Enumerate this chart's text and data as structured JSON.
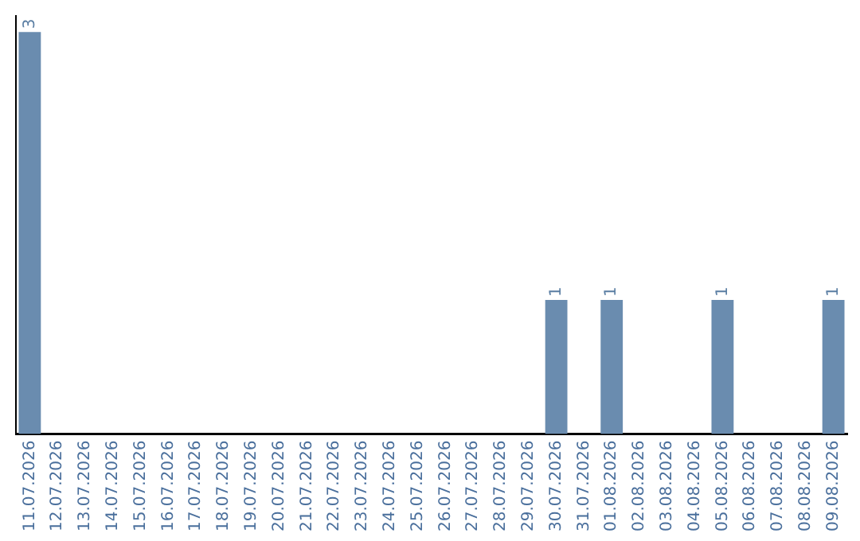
{
  "chart_data": {
    "type": "bar",
    "categories": [
      "11.07.2026",
      "12.07.2026",
      "13.07.2026",
      "14.07.2026",
      "15.07.2026",
      "16.07.2026",
      "17.07.2026",
      "18.07.2026",
      "19.07.2026",
      "20.07.2026",
      "21.07.2026",
      "22.07.2026",
      "23.07.2026",
      "24.07.2026",
      "25.07.2026",
      "26.07.2026",
      "27.07.2026",
      "28.07.2026",
      "29.07.2026",
      "30.07.2026",
      "31.07.2026",
      "01.08.2026",
      "02.08.2026",
      "03.08.2026",
      "04.08.2026",
      "05.08.2026",
      "06.08.2026",
      "07.08.2026",
      "08.08.2026",
      "09.08.2026"
    ],
    "values": [
      3,
      0,
      0,
      0,
      0,
      0,
      0,
      0,
      0,
      0,
      0,
      0,
      0,
      0,
      0,
      0,
      0,
      0,
      0,
      1,
      0,
      1,
      0,
      0,
      0,
      1,
      0,
      0,
      0,
      1
    ],
    "value_labels": [
      "3",
      null,
      null,
      null,
      null,
      null,
      null,
      null,
      null,
      null,
      null,
      null,
      null,
      null,
      null,
      null,
      null,
      null,
      null,
      "1",
      null,
      "1",
      null,
      null,
      null,
      "1",
      null,
      null,
      null,
      "1"
    ],
    "color": "#6a8caf",
    "ylim": [
      0,
      3.12
    ],
    "grid": false,
    "legend": false,
    "tick_labels": "x"
  }
}
